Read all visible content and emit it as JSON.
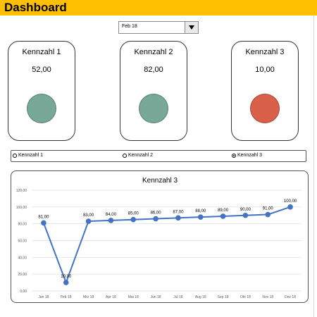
{
  "header": {
    "title": "Dashboard",
    "color": "#ffc000"
  },
  "month_select": {
    "selected": "Feb 18"
  },
  "cards": [
    {
      "title": "Kennzahl  1",
      "value": "52,00",
      "status_color": "#77a898"
    },
    {
      "title": "Kennzahl  2",
      "value": "82,00",
      "status_color": "#77a898"
    },
    {
      "title": "Kennzahl  3",
      "value": "10,00",
      "status_color": "#d9614a"
    }
  ],
  "radio_options": [
    {
      "label": "Kennzahl 1",
      "checked": false
    },
    {
      "label": "Kennzahl 2",
      "checked": false
    },
    {
      "label": "Kennzahl 3",
      "checked": true
    }
  ],
  "chart_data": {
    "type": "line",
    "title": "Kennzahl  3",
    "categories": [
      "Jan 18",
      "Feb 18",
      "Mrz 18",
      "Apr 18",
      "Mai 18",
      "Jun 18",
      "Jul 18",
      "Aug 18",
      "Sep 18",
      "Okt 18",
      "Nov 18",
      "Dez 18"
    ],
    "series": [
      {
        "values": [
          81,
          10,
          83,
          84,
          85,
          86,
          87,
          88,
          89,
          90,
          91,
          100
        ]
      }
    ],
    "data_labels": [
      "81,00",
      "10,00",
      "83,00",
      "84,00",
      "85,00",
      "86,00",
      "87,00",
      "88,00",
      "89,00",
      "90,00",
      "91,00",
      "100,00"
    ],
    "y_ticks": [
      "0,00",
      "20,00",
      "40,00",
      "60,00",
      "80,00",
      "100,00",
      "120,00"
    ],
    "ylim": [
      0,
      120
    ],
    "line_color": "#4472c4",
    "grid": true
  }
}
